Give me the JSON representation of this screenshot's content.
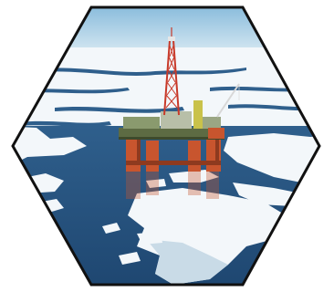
{
  "image": {
    "subject": "",
    "colors": {
      "sky_top": "#7fb6d9",
      "sky_bottom": "#d6e8f2",
      "sea": "#2f5f8c",
      "sea_dark": "#1e4670",
      "ice": "#f3f7fa",
      "ice_shadow": "#c9dbe7",
      "hull": "#c8552e",
      "hull_dark": "#8e3a1f",
      "deck": "#5d6b43",
      "derrick": "#c83a2a",
      "frame": "#111111"
    }
  }
}
